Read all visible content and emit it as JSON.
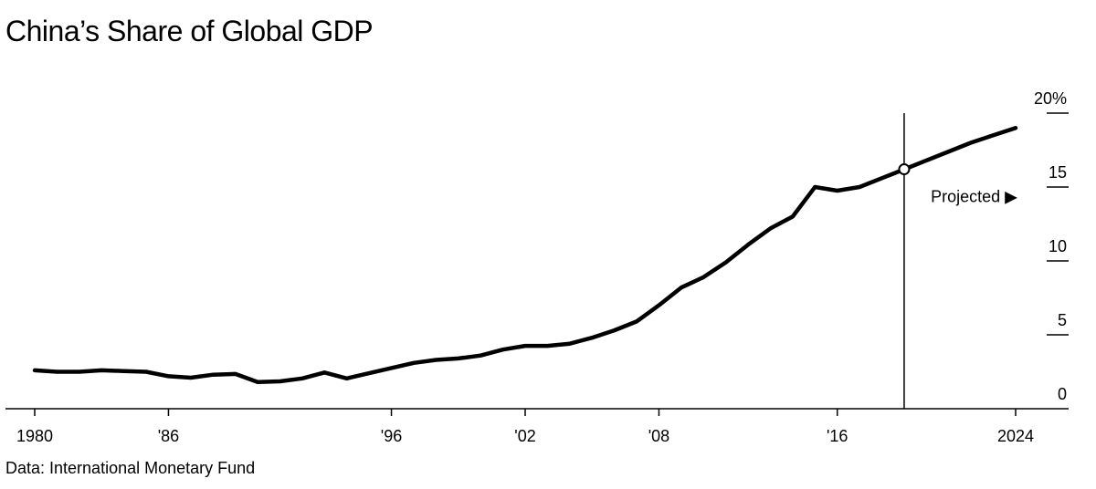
{
  "header": {
    "title": "China’s Share of Global GDP"
  },
  "footer": {
    "source": "Data: International Monetary Fund"
  },
  "chart_data": {
    "type": "line",
    "title": "China’s Share of Global GDP",
    "xlabel": "",
    "ylabel": "",
    "source": "Data: International Monetary Fund",
    "xlim": [
      1980,
      2024
    ],
    "ylim": [
      0,
      20
    ],
    "x_ticks": [
      {
        "value": 1980,
        "label": "1980"
      },
      {
        "value": 1986,
        "label": "'86"
      },
      {
        "value": 1996,
        "label": "'96"
      },
      {
        "value": 2002,
        "label": "'02"
      },
      {
        "value": 2008,
        "label": "'08"
      },
      {
        "value": 2016,
        "label": "'16"
      },
      {
        "value": 2024,
        "label": "2024"
      }
    ],
    "y_ticks": [
      {
        "value": 0,
        "label": "0"
      },
      {
        "value": 5,
        "label": "5"
      },
      {
        "value": 10,
        "label": "10"
      },
      {
        "value": 15,
        "label": "15"
      },
      {
        "value": 20,
        "label": "20%"
      }
    ],
    "grid": false,
    "annotation": {
      "label": "Projected ▶",
      "x": 2019,
      "y": 16.2
    },
    "series": [
      {
        "name": "China's share of global GDP (%)",
        "color": "#000000",
        "x": [
          1980,
          1981,
          1982,
          1983,
          1984,
          1985,
          1986,
          1987,
          1988,
          1989,
          1990,
          1991,
          1992,
          1993,
          1994,
          1995,
          1996,
          1997,
          1998,
          1999,
          2000,
          2001,
          2002,
          2003,
          2004,
          2005,
          2006,
          2007,
          2008,
          2009,
          2010,
          2011,
          2012,
          2013,
          2014,
          2015,
          2016,
          2017,
          2018,
          2019,
          2020,
          2021,
          2022,
          2023,
          2024
        ],
        "values": [
          2.6,
          2.5,
          2.5,
          2.6,
          2.55,
          2.5,
          2.2,
          2.1,
          2.3,
          2.35,
          1.8,
          1.85,
          2.05,
          2.45,
          2.05,
          2.4,
          2.75,
          3.1,
          3.3,
          3.4,
          3.6,
          4.0,
          4.25,
          4.25,
          4.4,
          4.8,
          5.3,
          5.9,
          7.0,
          8.2,
          8.9,
          9.9,
          11.1,
          12.2,
          13.0,
          15.0,
          14.75,
          15.0,
          15.6,
          16.2,
          16.8,
          17.4,
          18.0,
          18.5,
          19.0
        ]
      }
    ]
  }
}
